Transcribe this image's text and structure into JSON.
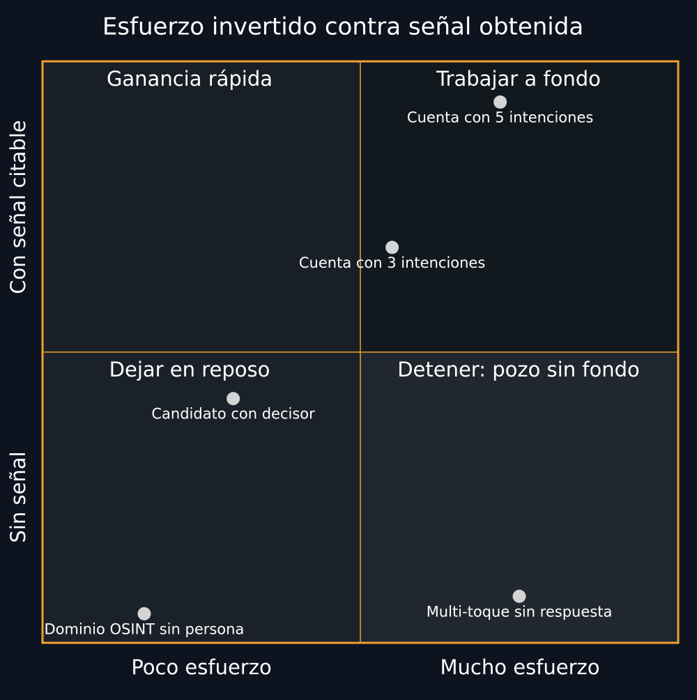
{
  "chart_data": {
    "type": "quadrant",
    "title": "Esfuerzo invertido contra señal obtenida",
    "x_axis_labels": [
      "Poco esfuerzo",
      "Mucho esfuerzo"
    ],
    "y_axis_labels": [
      "Sin señal",
      "Con señal citable"
    ],
    "quadrants": [
      {
        "label": "Ganancia rápida",
        "color": "#181f26"
      },
      {
        "label": "Trabajar a fondo",
        "color": "#11181e"
      },
      {
        "label": "Dejar en reposo",
        "color": "#1a2129"
      },
      {
        "label": "Detener: pozo sin fondo",
        "color": "#21272f"
      }
    ],
    "xlim": [
      0,
      1
    ],
    "ylim": [
      0,
      1
    ],
    "border_color": "#f0a030",
    "point_color": "#d4d4d4",
    "points": [
      {
        "label": "Cuenta con 5 intenciones",
        "x": 0.72,
        "y": 0.93
      },
      {
        "label": "Cuenta con 3 intenciones",
        "x": 0.55,
        "y": 0.68
      },
      {
        "label": "Candidato con decisor",
        "x": 0.3,
        "y": 0.42
      },
      {
        "label": "Dominio OSINT sin persona",
        "x": 0.16,
        "y": 0.05
      },
      {
        "label": "Multi-toque sin respuesta",
        "x": 0.75,
        "y": 0.08
      }
    ]
  }
}
